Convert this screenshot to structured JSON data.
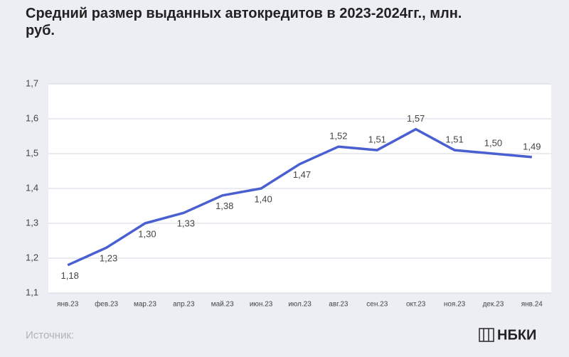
{
  "chart_data": {
    "type": "line",
    "title": "Средний размер выданных автокредитов в 2023-2024гг., млн. руб.",
    "categories": [
      "янв.23",
      "фев.23",
      "мар.23",
      "апр.23",
      "май.23",
      "июн.23",
      "июл.23",
      "авг.23",
      "сен.23",
      "окт.23",
      "ноя.23",
      "дек.23",
      "янв.24"
    ],
    "series": [
      {
        "color": "#4a5fd0",
        "values": [
          1.18,
          1.23,
          1.3,
          1.33,
          1.38,
          1.4,
          1.47,
          1.52,
          1.51,
          1.57,
          1.51,
          1.5,
          1.49
        ],
        "value_labels": [
          "1,18",
          "1,23",
          "1,30",
          "1,33",
          "1,38",
          "1,40",
          "1,47",
          "1,52",
          "1,51",
          "1,57",
          "1,51",
          "1,50",
          "1,49"
        ]
      }
    ],
    "ylim": [
      1.1,
      1.7
    ],
    "yticks": [
      {
        "value": 1.1,
        "label": "1,1"
      },
      {
        "value": 1.2,
        "label": "1,2"
      },
      {
        "value": 1.3,
        "label": "1,3"
      },
      {
        "value": 1.4,
        "label": "1,4"
      },
      {
        "value": 1.5,
        "label": "1,5"
      },
      {
        "value": 1.6,
        "label": "1,6"
      },
      {
        "value": 1.7,
        "label": "1,7"
      }
    ],
    "grid": true
  },
  "footer": {
    "source": "Источник:",
    "logo": "НБКИ"
  }
}
